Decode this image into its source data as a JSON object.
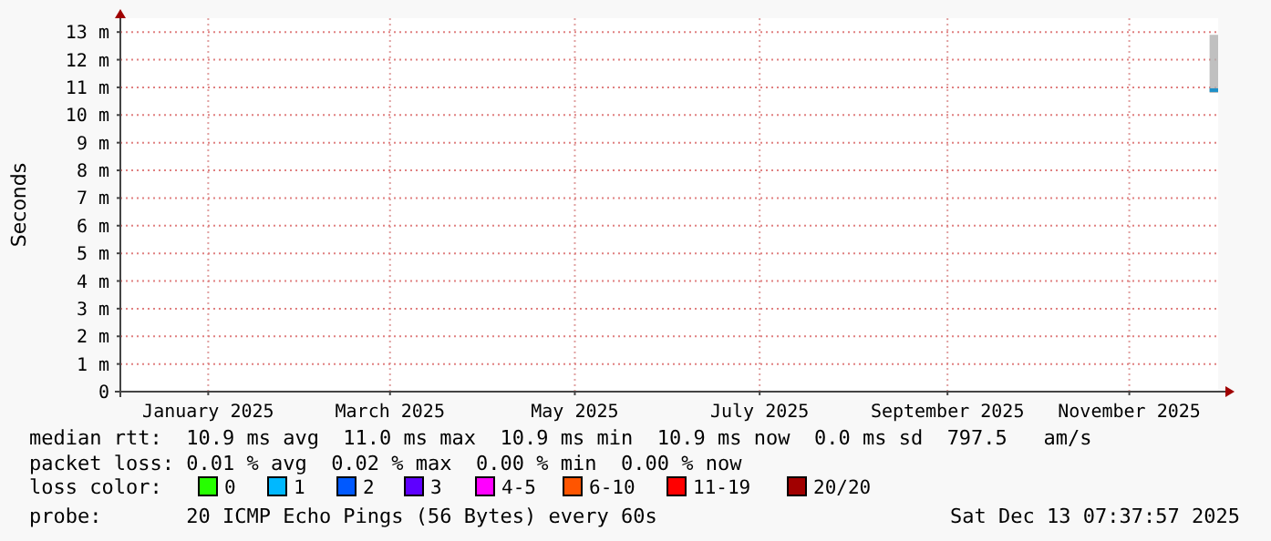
{
  "chart_data": {
    "type": "line",
    "ylabel": "Seconds",
    "legend_title": "loss color:",
    "legend": "bottom",
    "grid": true,
    "xlim": [
      "2024-12-16",
      "2025-12-13T07:37"
    ],
    "xticks": [
      {
        "value": "2025-01-14",
        "label": "January 2025"
      },
      {
        "value": "2025-03-15",
        "label": "March 2025"
      },
      {
        "value": "2025-05-15",
        "label": "May 2025"
      },
      {
        "value": "2025-07-15",
        "label": "July 2025"
      },
      {
        "value": "2025-09-15",
        "label": "September 2025"
      },
      {
        "value": "2025-11-14",
        "label": "November 2025"
      }
    ],
    "ylim": [
      0,
      13.5
    ],
    "yticks": [
      0,
      {
        "value": 1,
        "label": "1 m"
      },
      {
        "value": 2,
        "label": "2 m"
      },
      {
        "value": 3,
        "label": "3 m"
      },
      {
        "value": 4,
        "label": "4 m"
      },
      {
        "value": 5,
        "label": "5 m"
      },
      {
        "value": 6,
        "label": "6 m"
      },
      {
        "value": 7,
        "label": "7 m"
      },
      {
        "value": 8,
        "label": "8 m"
      },
      {
        "value": 9,
        "label": "9 m"
      },
      {
        "value": 10,
        "label": "10 m"
      },
      {
        "value": 11,
        "label": "11 m"
      },
      {
        "value": 12,
        "label": "12 m"
      },
      {
        "value": 13,
        "label": "13 m"
      }
    ],
    "series": [
      {
        "color": "#1e90c8",
        "x": [
          "2025-12-10T12:00",
          "2025-12-13T07:37"
        ],
        "values": [
          10.9,
          10.9
        ],
        "lower": [
          10.8,
          10.8
        ],
        "upper": [
          12.9,
          12.9
        ]
      },
      {
        "name": "0",
        "color": "#26ff00"
      },
      {
        "name": "1",
        "color": "#00b8ff"
      },
      {
        "name": "2",
        "color": "#0059ff"
      },
      {
        "name": "3",
        "color": "#5e00ff"
      },
      {
        "name": "4-5",
        "color": "#ff00ff"
      },
      {
        "name": "6-10",
        "color": "#ff5500"
      },
      {
        "name": "11-19",
        "color": "#ff0000"
      },
      {
        "name": "20/20",
        "color": "#a10000"
      }
    ],
    "annotations": [
      "median rtt:  10.9 ms avg  11.0 ms max  10.9 ms min  10.9 ms now  0.0 ms sd  797.5   am/s",
      "packet loss: 0.01 % avg  0.02 % max  0.00 % min  0.00 % now",
      "probe:       20 ICMP Echo Pings (56 Bytes) every 60s",
      "Sat Dec 13 07:37:57 2025"
    ]
  }
}
